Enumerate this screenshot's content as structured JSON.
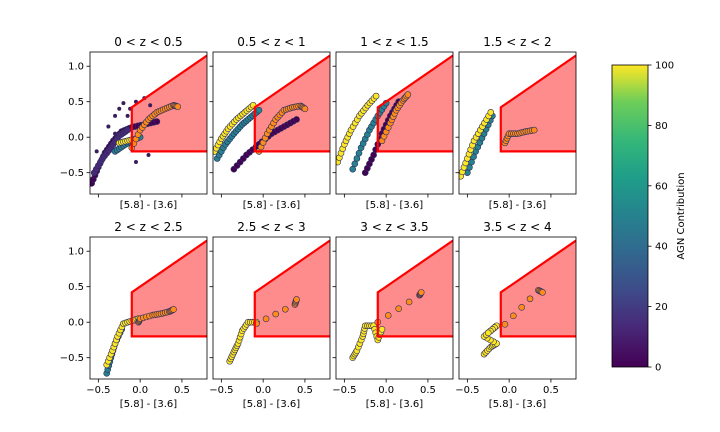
{
  "chart_data": {
    "type": "scatter",
    "title": "",
    "x_axis": {
      "label": "[5.8] - [3.6]",
      "range": [
        -0.6,
        0.8
      ],
      "ticks": [
        -0.5,
        0.0,
        0.5
      ],
      "tick_labels": [
        "−0.5",
        "0.0",
        "0.5"
      ]
    },
    "y_axis": {
      "label": "",
      "range": [
        -0.8,
        1.2
      ],
      "ticks": [
        -0.5,
        0.0,
        0.5,
        1.0
      ],
      "tick_labels": [
        "−0.5",
        "0.0",
        "0.5",
        "1.0"
      ]
    },
    "selection_wedge": {
      "vertices": [
        [
          -0.1,
          -0.2
        ],
        [
          -0.1,
          0.42
        ],
        [
          0.8,
          1.15
        ],
        [
          0.8,
          -0.2
        ]
      ],
      "fill": "#ff8080",
      "edge": "#ff0000"
    },
    "colorbar": {
      "label": "AGN Contribution",
      "range": [
        0,
        100
      ],
      "ticks": [
        0,
        20,
        40,
        60,
        80,
        100
      ],
      "colormap": "viridis"
    },
    "marker_colors": {
      "outline": "#2e2e5e",
      "orange": "#ff8c1a"
    },
    "panels": [
      {
        "title": "0 < z < 0.5",
        "bands": [
          {
            "name": "purple",
            "agn": 5,
            "pts": [
              [
                -0.58,
                -0.65
              ],
              [
                -0.5,
                -0.42
              ],
              [
                -0.42,
                -0.22
              ],
              [
                -0.32,
                -0.05
              ],
              [
                -0.22,
                0.08
              ],
              [
                -0.1,
                0.14
              ],
              [
                0.05,
                0.18
              ],
              [
                0.2,
                0.22
              ]
            ]
          },
          {
            "name": "purple2",
            "agn": 15,
            "pts": [
              [
                -0.55,
                -0.5
              ],
              [
                -0.45,
                -0.3
              ],
              [
                -0.35,
                -0.15
              ],
              [
                -0.25,
                0.02
              ],
              [
                -0.15,
                0.1
              ]
            ]
          },
          {
            "name": "teal",
            "agn": 45,
            "pts": [
              [
                -0.3,
                -0.2
              ],
              [
                -0.2,
                -0.12
              ],
              [
                -0.1,
                -0.05
              ],
              [
                0.0,
                0.0
              ]
            ]
          },
          {
            "name": "yellow",
            "agn": 95,
            "pts": [
              [
                -0.25,
                -0.08
              ],
              [
                -0.15,
                -0.05
              ],
              [
                -0.05,
                -0.02
              ]
            ]
          },
          {
            "name": "orange",
            "agn": -1,
            "pts": [
              [
                -0.1,
                -0.15
              ],
              [
                0.0,
                0.1
              ],
              [
                0.1,
                0.25
              ],
              [
                0.2,
                0.35
              ],
              [
                0.3,
                0.4
              ],
              [
                0.4,
                0.45
              ],
              [
                0.45,
                0.43
              ]
            ]
          }
        ],
        "scatter": [
          [
            -0.2,
            0.48
          ],
          [
            -0.12,
            0.4
          ],
          [
            -0.05,
            0.5
          ],
          [
            0.05,
            0.55
          ],
          [
            0.12,
            0.45
          ],
          [
            -0.3,
            0.3
          ],
          [
            -0.25,
            0.4
          ],
          [
            -0.38,
            0.15
          ],
          [
            -0.15,
            0.3
          ],
          [
            -0.05,
            -0.35
          ],
          [
            -0.52,
            -0.2
          ],
          [
            0.1,
            -0.25
          ],
          [
            -0.3,
            0.05
          ]
        ]
      },
      {
        "title": "0.5 < z < 1",
        "bands": [
          {
            "name": "purple",
            "agn": 5,
            "pts": [
              [
                -0.35,
                -0.45
              ],
              [
                -0.2,
                -0.25
              ],
              [
                -0.05,
                -0.1
              ],
              [
                0.1,
                0.05
              ],
              [
                0.25,
                0.15
              ],
              [
                0.4,
                0.25
              ]
            ]
          },
          {
            "name": "teal",
            "agn": 45,
            "pts": [
              [
                -0.55,
                -0.3
              ],
              [
                -0.45,
                -0.1
              ],
              [
                -0.35,
                0.05
              ],
              [
                -0.25,
                0.18
              ],
              [
                -0.15,
                0.28
              ],
              [
                -0.05,
                0.38
              ]
            ]
          },
          {
            "name": "yellow",
            "agn": 95,
            "pts": [
              [
                -0.58,
                -0.2
              ],
              [
                -0.5,
                -0.02
              ],
              [
                -0.42,
                0.12
              ],
              [
                -0.32,
                0.25
              ],
              [
                -0.22,
                0.35
              ],
              [
                -0.12,
                0.45
              ]
            ]
          },
          {
            "name": "orange",
            "agn": -1,
            "pts": [
              [
                -0.05,
                -0.2
              ],
              [
                0.05,
                0.05
              ],
              [
                0.15,
                0.25
              ],
              [
                0.25,
                0.38
              ],
              [
                0.35,
                0.42
              ],
              [
                0.45,
                0.44
              ],
              [
                0.5,
                0.4
              ]
            ]
          }
        ],
        "scatter": []
      },
      {
        "title": "1 < z < 1.5",
        "bands": [
          {
            "name": "purple",
            "agn": 5,
            "pts": [
              [
                -0.25,
                -0.5
              ],
              [
                -0.15,
                -0.25
              ],
              [
                -0.05,
                0.05
              ],
              [
                0.05,
                0.3
              ],
              [
                0.15,
                0.5
              ]
            ]
          },
          {
            "name": "teal",
            "agn": 45,
            "pts": [
              [
                -0.4,
                -0.45
              ],
              [
                -0.3,
                -0.15
              ],
              [
                -0.2,
                0.1
              ],
              [
                -0.1,
                0.3
              ],
              [
                0.0,
                0.48
              ]
            ]
          },
          {
            "name": "yellow",
            "agn": 95,
            "pts": [
              [
                -0.58,
                -0.35
              ],
              [
                -0.5,
                -0.1
              ],
              [
                -0.42,
                0.1
              ],
              [
                -0.32,
                0.3
              ],
              [
                -0.22,
                0.45
              ],
              [
                -0.12,
                0.58
              ]
            ]
          },
          {
            "name": "orange",
            "agn": -1,
            "pts": [
              [
                -0.05,
                -0.05
              ],
              [
                0.05,
                0.2
              ],
              [
                0.12,
                0.38
              ],
              [
                0.2,
                0.52
              ],
              [
                0.26,
                0.6
              ]
            ]
          }
        ],
        "scatter": []
      },
      {
        "title": "1.5 < z < 2",
        "bands": [
          {
            "name": "teal",
            "agn": 40,
            "pts": [
              [
                -0.5,
                -0.5
              ],
              [
                -0.4,
                -0.2
              ],
              [
                -0.3,
                0.05
              ],
              [
                -0.2,
                0.3
              ]
            ]
          },
          {
            "name": "yellow",
            "agn": 95,
            "pts": [
              [
                -0.58,
                -0.55
              ],
              [
                -0.5,
                -0.3
              ],
              [
                -0.42,
                -0.05
              ],
              [
                -0.32,
                0.15
              ],
              [
                -0.22,
                0.35
              ]
            ]
          },
          {
            "name": "orange",
            "agn": -1,
            "pts": [
              [
                -0.05,
                -0.08
              ],
              [
                0.0,
                0.05
              ],
              [
                0.1,
                0.05
              ],
              [
                0.2,
                0.08
              ],
              [
                0.3,
                0.1
              ]
            ]
          }
        ],
        "scatter": []
      },
      {
        "title": "2 < z < 2.5",
        "bands": [
          {
            "name": "teal",
            "agn": 40,
            "pts": [
              [
                -0.4,
                -0.72
              ],
              [
                -0.35,
                -0.5
              ],
              [
                -0.3,
                -0.3
              ],
              [
                -0.22,
                -0.1
              ]
            ]
          },
          {
            "name": "yellow",
            "agn": 95,
            "pts": [
              [
                -0.4,
                -0.6
              ],
              [
                -0.33,
                -0.4
              ],
              [
                -0.27,
                -0.2
              ],
              [
                -0.2,
                -0.02
              ],
              [
                -0.1,
                0.02
              ],
              [
                -0.02,
                0.05
              ]
            ]
          },
          {
            "name": "orange",
            "agn": -1,
            "pts": [
              [
                -0.02,
                0.0
              ],
              [
                0.0,
                0.05
              ],
              [
                0.15,
                0.1
              ],
              [
                0.25,
                0.12
              ],
              [
                0.35,
                0.15
              ],
              [
                0.4,
                0.18
              ]
            ]
          }
        ],
        "scatter": []
      },
      {
        "title": "2.5 < z < 3",
        "bands": [
          {
            "name": "yellow",
            "agn": 95,
            "pts": [
              [
                -0.4,
                -0.55
              ],
              [
                -0.35,
                -0.42
              ],
              [
                -0.3,
                -0.3
              ],
              [
                -0.25,
                -0.12
              ],
              [
                -0.18,
                0.0
              ],
              [
                -0.08,
                0.0
              ]
            ]
          },
          {
            "name": "orange",
            "agn": -1,
            "pts": [
              [
                -0.08,
                -0.02
              ],
              [
                0.38,
                0.25
              ],
              [
                0.4,
                0.32
              ]
            ]
          }
        ],
        "scatter": []
      },
      {
        "title": "3 < z < 3.5",
        "bands": [
          {
            "name": "yellow",
            "agn": 95,
            "pts": [
              [
                -0.4,
                -0.5
              ],
              [
                -0.35,
                -0.4
              ],
              [
                -0.28,
                -0.2
              ],
              [
                -0.25,
                -0.05
              ],
              [
                -0.15,
                -0.05
              ],
              [
                -0.1,
                -0.25
              ],
              [
                -0.05,
                -0.1
              ]
            ]
          },
          {
            "name": "orange",
            "agn": -1,
            "pts": [
              [
                -0.1,
                0.0
              ],
              [
                0.4,
                0.38
              ],
              [
                0.42,
                0.42
              ]
            ]
          }
        ],
        "scatter": []
      },
      {
        "title": "3.5 < z < 4",
        "bands": [
          {
            "name": "yellow",
            "agn": 95,
            "pts": [
              [
                -0.3,
                -0.45
              ],
              [
                -0.22,
                -0.35
              ],
              [
                -0.15,
                -0.3
              ],
              [
                -0.3,
                -0.2
              ],
              [
                -0.2,
                -0.1
              ],
              [
                -0.15,
                -0.05
              ],
              [
                -0.25,
                -0.15
              ]
            ]
          },
          {
            "name": "orange",
            "agn": -1,
            "pts": [
              [
                -0.05,
                -0.03
              ],
              [
                0.35,
                0.45
              ],
              [
                0.4,
                0.42
              ]
            ]
          }
        ],
        "scatter": []
      }
    ]
  }
}
